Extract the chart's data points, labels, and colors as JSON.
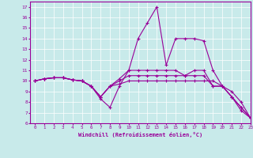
{
  "xlabel": "Windchill (Refroidissement éolien,°C)",
  "bg_color": "#c8eaea",
  "line_color": "#990099",
  "grid_color": "#ffffff",
  "xlim": [
    -0.5,
    23
  ],
  "ylim": [
    6,
    17.5
  ],
  "xticks": [
    0,
    1,
    2,
    3,
    4,
    5,
    6,
    7,
    8,
    9,
    10,
    11,
    12,
    13,
    14,
    15,
    16,
    17,
    18,
    19,
    20,
    21,
    22,
    23
  ],
  "yticks": [
    6,
    7,
    8,
    9,
    10,
    11,
    12,
    13,
    14,
    15,
    16,
    17
  ],
  "series": [
    [
      10.0,
      10.2,
      10.3,
      10.3,
      10.1,
      10.0,
      9.5,
      8.3,
      7.5,
      9.5,
      11.0,
      11.0,
      11.0,
      11.0,
      11.0,
      11.0,
      10.5,
      11.0,
      11.0,
      9.5,
      9.5,
      8.5,
      7.5,
      6.5
    ],
    [
      10.0,
      10.2,
      10.3,
      10.3,
      10.1,
      10.0,
      9.5,
      8.5,
      9.5,
      10.2,
      11.0,
      14.0,
      15.5,
      17.0,
      11.5,
      14.0,
      14.0,
      14.0,
      13.8,
      11.0,
      9.5,
      8.5,
      7.2,
      6.5
    ],
    [
      10.0,
      10.2,
      10.3,
      10.3,
      10.1,
      10.0,
      9.5,
      8.5,
      9.5,
      10.0,
      10.5,
      10.5,
      10.5,
      10.5,
      10.5,
      10.5,
      10.5,
      10.5,
      10.5,
      9.5,
      9.5,
      8.5,
      7.5,
      6.5
    ],
    [
      10.0,
      10.2,
      10.3,
      10.3,
      10.1,
      10.0,
      9.5,
      8.5,
      9.5,
      9.7,
      10.0,
      10.0,
      10.0,
      10.0,
      10.0,
      10.0,
      10.0,
      10.0,
      10.0,
      10.0,
      9.5,
      9.0,
      8.0,
      6.5
    ]
  ]
}
